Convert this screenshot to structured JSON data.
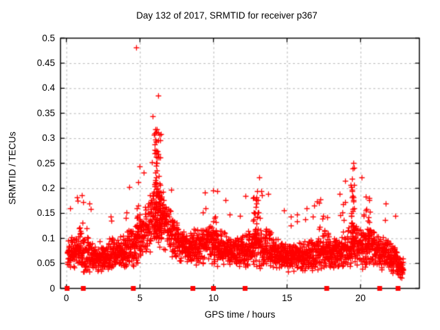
{
  "chart_data": {
    "type": "scatter",
    "title": "Day 132 of 2017, SRMTID for receiver p367",
    "xlabel": "GPS time / hours",
    "ylabel": "SRMTID / TECUs",
    "xlim": [
      -0.4,
      24.0
    ],
    "ylim": [
      0,
      0.5
    ],
    "xticks": [
      0,
      5,
      10,
      15,
      20
    ],
    "xtick_labels": [
      "0",
      "5",
      "10",
      "15",
      "20"
    ],
    "yticks": [
      0,
      0.05,
      0.1,
      0.15,
      0.2,
      0.25,
      0.3,
      0.35,
      0.4,
      0.45,
      0.5
    ],
    "ytick_labels": [
      "0",
      "0.05",
      "0.1",
      "0.15",
      "0.2",
      "0.25",
      "0.3",
      "0.35",
      "0.4",
      "0.45",
      "0.5"
    ],
    "grid": {
      "style": "dashed",
      "color": "#b3b3b3",
      "dash": [
        3,
        3.5
      ]
    },
    "axis_color": "#000000",
    "marker_color": "#ff0000",
    "series": [
      {
        "name": "srmtid_scatter",
        "marker": "plus",
        "generated": true,
        "seed": 1327367,
        "x_start": 0.05,
        "x_end": 22.9,
        "points_per_hour": 110,
        "tail_prob": 0.028,
        "y_min": 0.012,
        "profile": [
          [
            0.05,
            0.065,
            0.03
          ],
          [
            0.7,
            0.075,
            0.035
          ],
          [
            1.2,
            0.07,
            0.035
          ],
          [
            2.0,
            0.063,
            0.028
          ],
          [
            3.0,
            0.07,
            0.033
          ],
          [
            4.0,
            0.075,
            0.035
          ],
          [
            4.6,
            0.09,
            0.045
          ],
          [
            5.2,
            0.11,
            0.05
          ],
          [
            5.8,
            0.14,
            0.06
          ],
          [
            6.2,
            0.16,
            0.07
          ],
          [
            6.6,
            0.135,
            0.055
          ],
          [
            7.0,
            0.115,
            0.045
          ],
          [
            7.5,
            0.095,
            0.035
          ],
          [
            8.2,
            0.08,
            0.03
          ],
          [
            9.0,
            0.085,
            0.035
          ],
          [
            9.8,
            0.09,
            0.038
          ],
          [
            10.5,
            0.08,
            0.033
          ],
          [
            11.2,
            0.072,
            0.03
          ],
          [
            12.0,
            0.075,
            0.032
          ],
          [
            12.9,
            0.085,
            0.04
          ],
          [
            13.6,
            0.08,
            0.038
          ],
          [
            14.3,
            0.068,
            0.028
          ],
          [
            15.2,
            0.062,
            0.027
          ],
          [
            16.0,
            0.065,
            0.028
          ],
          [
            16.8,
            0.07,
            0.032
          ],
          [
            17.6,
            0.075,
            0.035
          ],
          [
            18.4,
            0.07,
            0.032
          ],
          [
            19.2,
            0.085,
            0.045
          ],
          [
            19.7,
            0.09,
            0.045
          ],
          [
            20.2,
            0.08,
            0.04
          ],
          [
            20.7,
            0.085,
            0.04
          ],
          [
            21.3,
            0.072,
            0.032
          ],
          [
            21.9,
            0.07,
            0.032
          ],
          [
            22.4,
            0.055,
            0.025
          ],
          [
            22.9,
            0.035,
            0.018
          ]
        ],
        "spikes": [
          {
            "x": 6.2,
            "w": 0.5,
            "n": 90,
            "ymin": 0.1,
            "ymax": 0.335,
            "exp": 1.6
          },
          {
            "x": 6.05,
            "w": 0.15,
            "n": 6,
            "ymin": 0.27,
            "ymax": 0.325,
            "exp": 1.0
          },
          {
            "x": 19.45,
            "w": 0.25,
            "n": 30,
            "ymin": 0.1,
            "ymax": 0.26,
            "exp": 1.6
          },
          {
            "x": 12.9,
            "w": 0.5,
            "n": 25,
            "ymin": 0.1,
            "ymax": 0.19,
            "exp": 1.2
          },
          {
            "x": 20.5,
            "w": 0.3,
            "n": 15,
            "ymin": 0.1,
            "ymax": 0.185,
            "exp": 1.2
          },
          {
            "x": 4.85,
            "w": 0.25,
            "n": 12,
            "ymin": 0.1,
            "ymax": 0.165,
            "exp": 1.2
          },
          {
            "x": 10.1,
            "w": 0.3,
            "n": 10,
            "ymin": 0.09,
            "ymax": 0.145,
            "exp": 1.2
          },
          {
            "x": 17.6,
            "w": 0.4,
            "n": 10,
            "ymin": 0.09,
            "ymax": 0.15,
            "exp": 1.2
          },
          {
            "x": 1.0,
            "w": 0.3,
            "n": 8,
            "ymin": 0.08,
            "ymax": 0.135,
            "exp": 1.2
          }
        ]
      },
      {
        "name": "zero_flag_squares",
        "marker": "square",
        "points": [
          [
            0.05,
            0
          ],
          [
            1.15,
            0
          ],
          [
            4.55,
            0
          ],
          [
            8.6,
            0
          ],
          [
            10.0,
            0
          ],
          [
            12.15,
            0
          ],
          [
            17.7,
            0
          ],
          [
            21.3,
            0
          ],
          [
            22.55,
            0
          ]
        ]
      },
      {
        "name": "outlier_points",
        "marker": "plus",
        "points": [
          [
            4.73,
            0.481
          ]
        ]
      }
    ]
  }
}
